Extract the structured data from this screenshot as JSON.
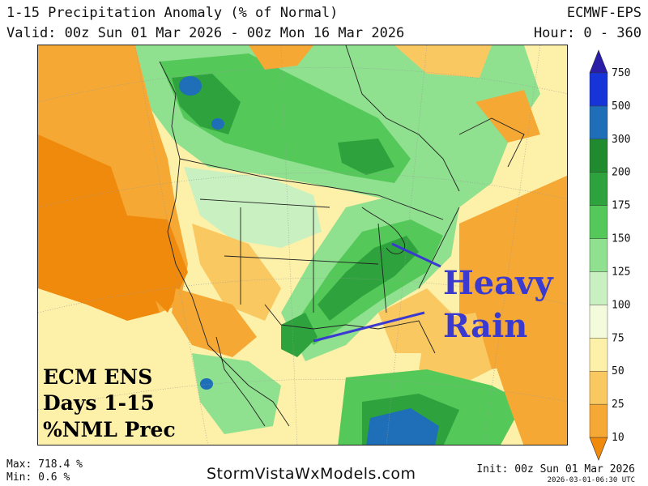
{
  "header": {
    "title": "1-15 Precipitation Anomaly (% of Normal)",
    "model": "ECMWF-EPS",
    "valid": "Valid: 00z Sun 01 Mar 2026 - 00z Mon 16 Mar 2026",
    "hour": "Hour: 0 - 360"
  },
  "annotations": {
    "heavy": "Heavy",
    "rain": "Rain",
    "label_line1": "ECM ENS",
    "label_line2": "Days 1-15",
    "label_line3": "%NML Prec"
  },
  "colorbar": {
    "labels": [
      "10",
      "25",
      "50",
      "75",
      "100",
      "125",
      "150",
      "175",
      "200",
      "300",
      "500",
      "750"
    ],
    "colors": [
      "#f08a0c",
      "#f5a833",
      "#fac861",
      "#fdf0a8",
      "#f4fbdc",
      "#c8f0c0",
      "#8fe08f",
      "#55c85a",
      "#2ea23c",
      "#1f8a2e",
      "#1e6fb8",
      "#1634d8",
      "#2a1ea8"
    ]
  },
  "footer": {
    "max": "Max: 718.4 %",
    "min": "Min: 0.6 %",
    "site": "StormVistaWxModels.com",
    "init": "Init: 00z Sun 01 Mar 2026",
    "generated": "2026-03-01-06:30 UTC"
  },
  "colors": {
    "orange": "#f08a0c",
    "light_orange": "#f5a833",
    "yellow": "#fac861",
    "pale_yellow": "#fdf0a8",
    "near_normal": "#f4fbdc",
    "light_green": "#c8f0c0",
    "green": "#8fe08f",
    "mid_green": "#55c85a",
    "dark_green": "#2ea23c",
    "blue": "#1e6fb8",
    "annotation_blue": "#3a3ad0"
  }
}
